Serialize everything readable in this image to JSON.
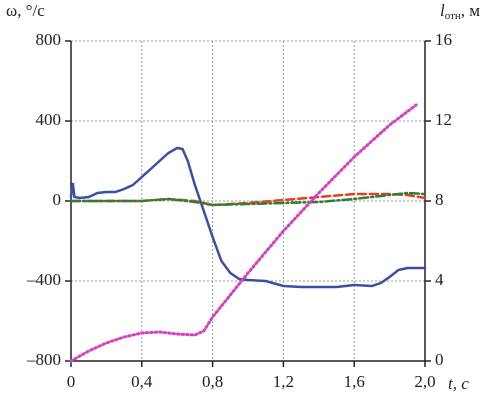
{
  "chart_data": {
    "type": "line",
    "ylabel": "ω, °/с",
    "y2label_symbol": "l",
    "y2label_subscript": "отн",
    "y2label_unit": ", м",
    "xlabel": "t, с",
    "xlim": [
      0,
      2.0
    ],
    "xticks": [
      0,
      {
        "value": 0.4,
        "label": "0,4"
      },
      {
        "value": 0.8,
        "label": "0,8"
      },
      {
        "value": 1.2,
        "label": "1,2"
      },
      {
        "value": 1.6,
        "label": "1,6"
      },
      {
        "value": 2.0,
        "label": "2,0"
      }
    ],
    "ylim": [
      -800,
      800
    ],
    "yticks": [
      {
        "value": -800,
        "label": "–800"
      },
      {
        "value": -400,
        "label": "–400"
      },
      0,
      400,
      800
    ],
    "y2lim": [
      0,
      16
    ],
    "y2ticks": [
      0,
      4,
      8,
      12,
      16
    ],
    "grid": true,
    "series": [
      {
        "color": "#3a4fa8",
        "style": "solid",
        "x": [
          0,
          0.01,
          0.02,
          0.05,
          0.1,
          0.15,
          0.2,
          0.25,
          0.3,
          0.35,
          0.4,
          0.45,
          0.5,
          0.55,
          0.6,
          0.63,
          0.66,
          0.7,
          0.75,
          0.8,
          0.85,
          0.9,
          0.95,
          1.0,
          1.1,
          1.2,
          1.3,
          1.4,
          1.5,
          1.6,
          1.7,
          1.75,
          1.8,
          1.85,
          1.9,
          2.0
        ],
        "values": [
          20,
          90,
          20,
          15,
          20,
          40,
          45,
          45,
          60,
          80,
          120,
          160,
          200,
          240,
          265,
          260,
          200,
          80,
          -50,
          -180,
          -300,
          -360,
          -390,
          -395,
          -400,
          -425,
          -430,
          -430,
          -430,
          -420,
          -425,
          -410,
          -380,
          -345,
          -335,
          -335
        ]
      },
      {
        "color": "#e8401c",
        "style": "dashed",
        "x": [
          0,
          0.4,
          0.55,
          0.7,
          0.8,
          1.0,
          1.2,
          1.4,
          1.6,
          1.8,
          1.9,
          2.0
        ],
        "values": [
          0,
          0,
          10,
          0,
          -20,
          -10,
          5,
          20,
          35,
          35,
          30,
          15
        ]
      },
      {
        "color": "#2e7d3a",
        "style": "dashdot",
        "x": [
          0,
          0.4,
          0.55,
          0.7,
          0.8,
          1.0,
          1.2,
          1.4,
          1.6,
          1.8,
          1.9,
          2.0
        ],
        "values": [
          0,
          0,
          10,
          -5,
          -20,
          -15,
          -10,
          -5,
          10,
          30,
          40,
          35
        ]
      },
      {
        "color": "#d63fc0",
        "style": "dotted",
        "axis": "y2",
        "x": [
          0,
          0.1,
          0.2,
          0.3,
          0.4,
          0.5,
          0.6,
          0.7,
          0.75,
          0.8,
          0.9,
          1.0,
          1.2,
          1.4,
          1.6,
          1.8,
          1.95
        ],
        "values": [
          0,
          0.5,
          0.9,
          1.2,
          1.4,
          1.45,
          1.35,
          1.3,
          1.5,
          2.2,
          3.3,
          4.4,
          6.5,
          8.4,
          10.2,
          11.8,
          12.8
        ]
      }
    ]
  }
}
